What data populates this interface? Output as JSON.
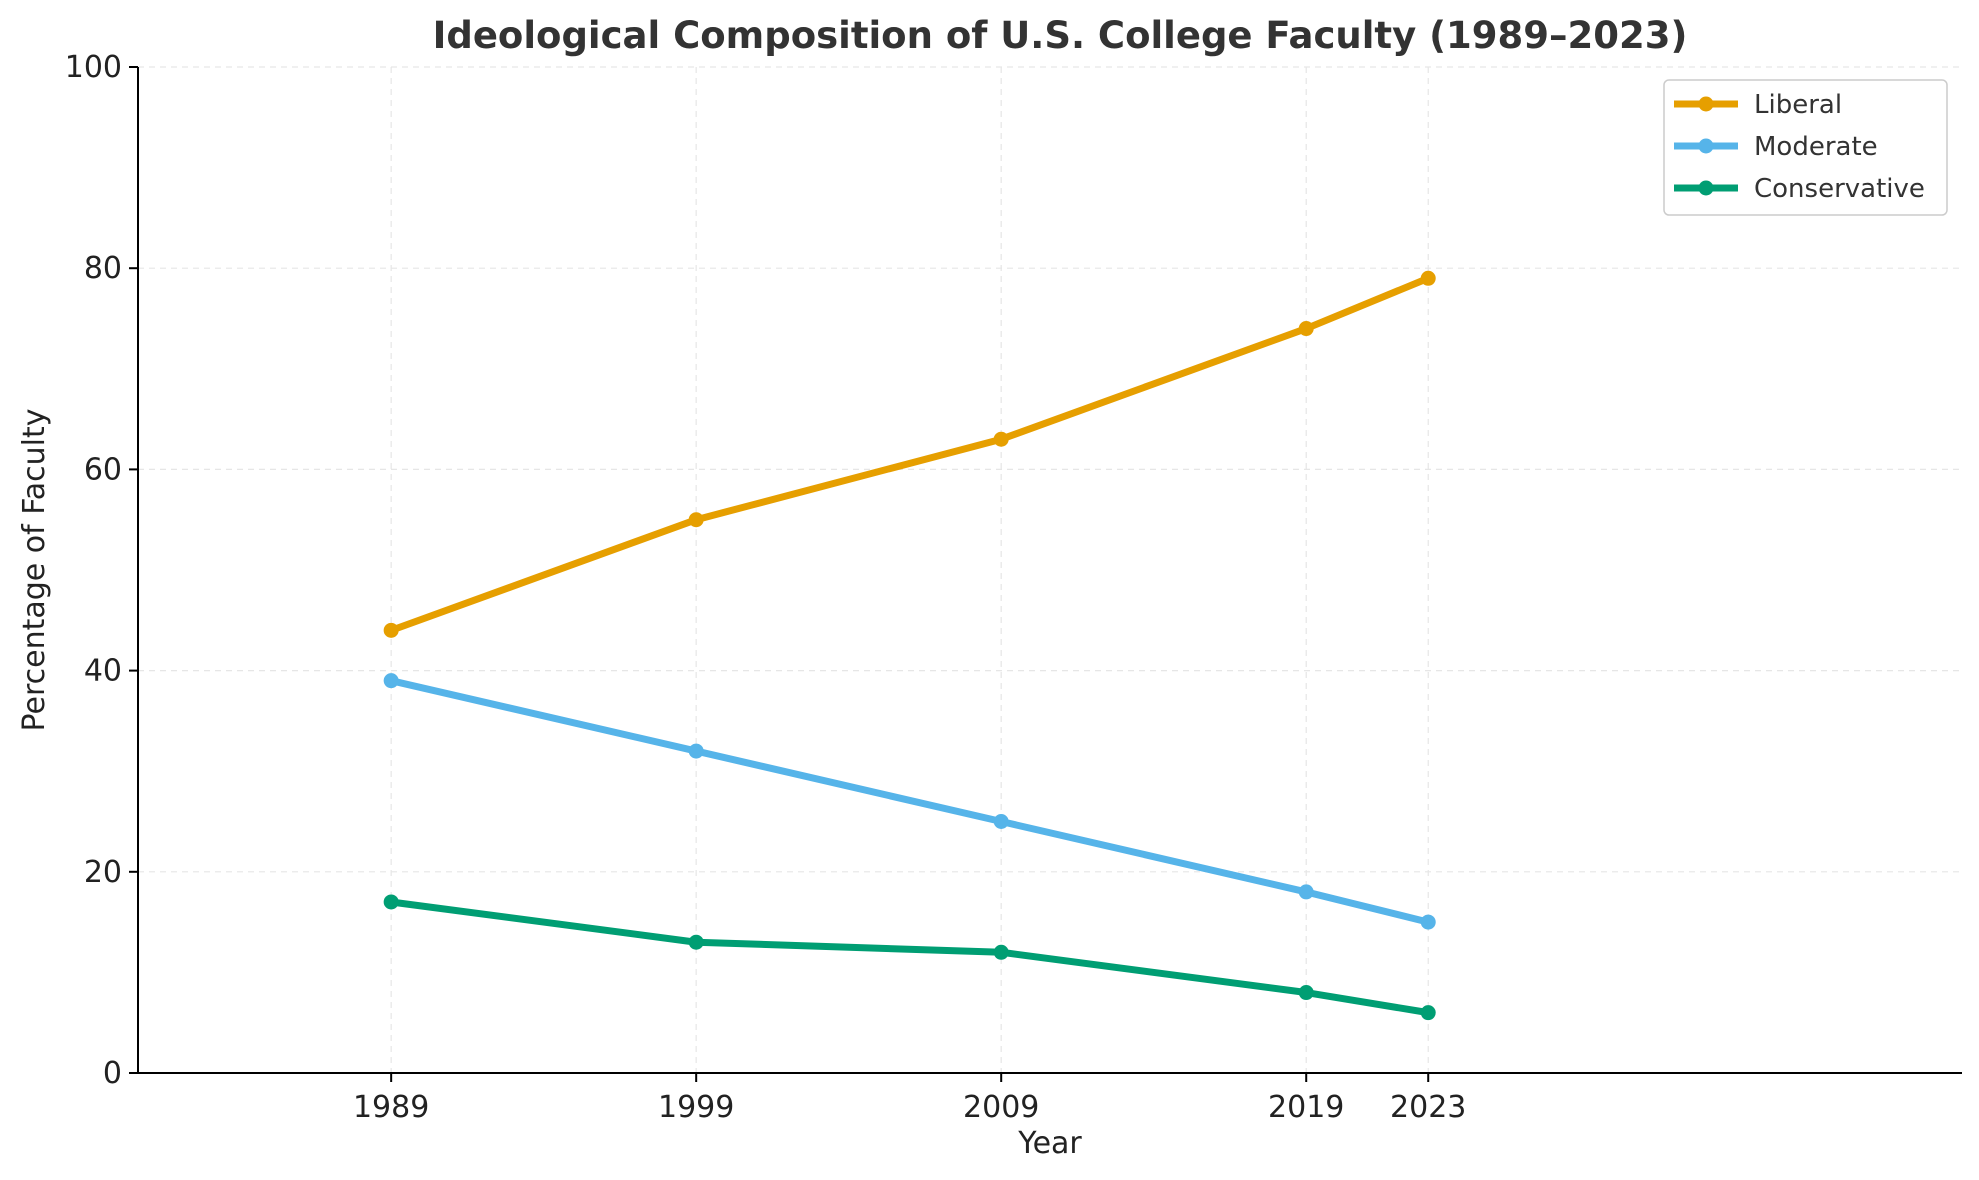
{
  "chart_data": {
    "type": "line",
    "title": "Ideological Composition of U.S. College Faculty (1989–2023)",
    "xlabel": "Year",
    "ylabel": "Percentage of Faculty",
    "x": [
      1989,
      1999,
      2009,
      2019,
      2023
    ],
    "xticks": [
      "1989",
      "1999",
      "2009",
      "2019",
      "2023"
    ],
    "xlim": [
      1980.7,
      2040.5
    ],
    "ylim": [
      0,
      100
    ],
    "yticks": [
      "0",
      "20",
      "40",
      "60",
      "80",
      "100"
    ],
    "grid": true,
    "legend_position": "top-right",
    "series": [
      {
        "name": "Liberal",
        "color": "#E69F00",
        "values": [
          44,
          55,
          63,
          74,
          79
        ]
      },
      {
        "name": "Moderate",
        "color": "#56B4E9",
        "values": [
          39,
          32,
          25,
          18,
          15
        ]
      },
      {
        "name": "Conservative",
        "color": "#009E73",
        "values": [
          17,
          13,
          12,
          8,
          6
        ]
      }
    ]
  }
}
